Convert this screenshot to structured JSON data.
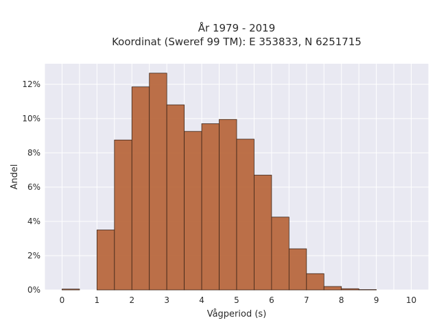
{
  "chart_data": {
    "type": "bar",
    "title_lines": [
      "År 1979 - 2019",
      "Koordinat (Sweref 99 TM): E 353833, N 6251715"
    ],
    "xlabel": "Vågperiod (s)",
    "ylabel": "Andel",
    "bin_width": 0.5,
    "bins_start": [
      0,
      0.5,
      1,
      1.5,
      2,
      2.5,
      3,
      3.5,
      4,
      4.5,
      5,
      5.5,
      6,
      6.5,
      7,
      7.5,
      8,
      8.5,
      9,
      9.5
    ],
    "values": [
      0.05,
      0.0,
      3.5,
      8.75,
      11.85,
      12.65,
      10.8,
      9.25,
      9.7,
      9.95,
      8.8,
      6.7,
      4.25,
      2.4,
      0.95,
      0.2,
      0.07,
      0.02,
      0.0,
      0.0
    ],
    "xlim": [
      -0.5,
      10.5
    ],
    "ylim": [
      0,
      13.2
    ],
    "x_ticks": [
      "0",
      "1",
      "2",
      "3",
      "4",
      "5",
      "6",
      "7",
      "8",
      "9",
      "10"
    ],
    "y_ticks": [
      "0%",
      "2%",
      "4%",
      "6%",
      "8%",
      "10%",
      "12%"
    ],
    "y_tick_values": [
      0,
      2,
      4,
      6,
      8,
      10,
      12
    ],
    "bar_color": "#b8683e",
    "bar_edge_color": "#3a2418",
    "plot_background": "#e9e9f2",
    "grid": true
  }
}
